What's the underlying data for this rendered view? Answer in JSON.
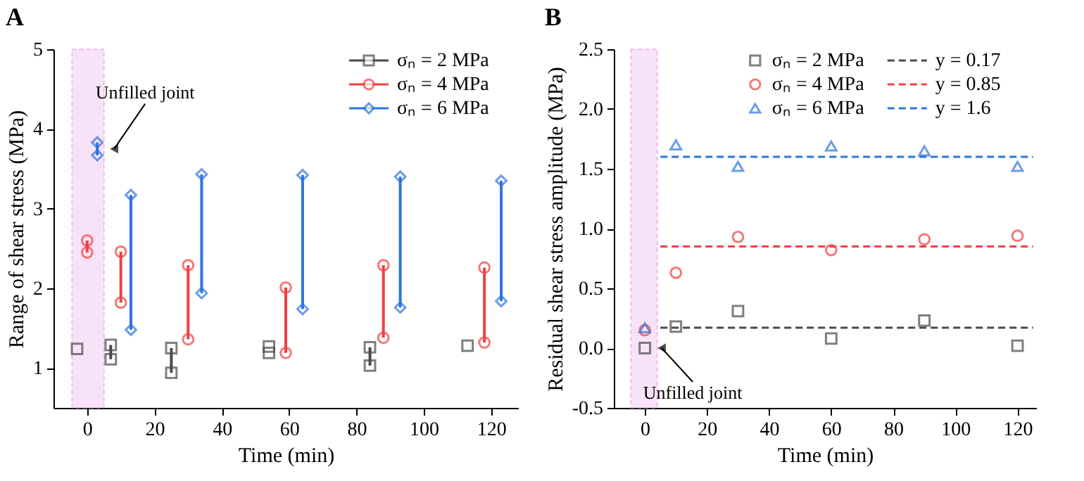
{
  "chart_data": [
    {
      "type": "bar",
      "title": "A",
      "xlabel": "Time (min)",
      "ylabel": "Range of shear stress (MPa)",
      "xlim": [
        -10,
        128
      ],
      "xticks": [
        0,
        20,
        40,
        60,
        80,
        100,
        120
      ],
      "ylim": [
        0.5,
        5
      ],
      "yticks": [
        1,
        2,
        3,
        4,
        5
      ],
      "grid": false,
      "legend": "top right",
      "series": [
        {
          "name": "σₙ = 2 MPa",
          "color": "#4a4a4a",
          "x": [
            null,
            7,
            25,
            null,
            84,
            null
          ],
          "base": [
            null,
            1.11,
            0.94,
            null,
            1.03,
            null
          ],
          "values": [
            null,
            0.18,
            0.31,
            null,
            0.23,
            null
          ]
        },
        {
          "name": "σₙ = 4 MPa",
          "color": "#f04040",
          "x": [
            0,
            10,
            30,
            59,
            88,
            118
          ],
          "base": [
            2.45,
            1.82,
            1.36,
            1.19,
            1.38,
            1.32
          ],
          "values": [
            0.15,
            0.64,
            0.93,
            0.82,
            0.91,
            0.94
          ]
        },
        {
          "name": "σₙ = 6 MPa",
          "color": "#2d74e0",
          "x": [
            3,
            13,
            34,
            64,
            93,
            123
          ],
          "base": [
            3.67,
            1.48,
            1.94,
            1.74,
            1.76,
            1.84
          ],
          "values": [
            0.16,
            1.69,
            1.49,
            1.68,
            1.64,
            1.51
          ]
        },
        {
          "type": "scatter",
          "color": "#4a4a4a",
          "marker": "square",
          "x": [
            -3,
            7,
            25,
            54,
            84,
            113,
            7,
            25,
            54,
            84
          ],
          "values": [
            1.24,
            1.11,
            0.94,
            1.19,
            1.03,
            1.28,
            1.29,
            1.25,
            1.27,
            1.26
          ]
        },
        {
          "type": "scatter",
          "color": "#f04040",
          "marker": "circle",
          "x": [
            0,
            10,
            30,
            59,
            88,
            118,
            0,
            10,
            30,
            59,
            88,
            118
          ],
          "values": [
            2.45,
            1.82,
            1.36,
            1.19,
            1.38,
            1.32,
            2.6,
            2.46,
            2.29,
            2.01,
            2.29,
            2.26
          ]
        },
        {
          "type": "scatter",
          "color": "#2d74e0",
          "marker": "diamond",
          "x": [
            3,
            13,
            34,
            64,
            93,
            123,
            3,
            13,
            34,
            64,
            93,
            123
          ],
          "values": [
            3.67,
            1.48,
            1.94,
            1.74,
            1.76,
            1.84,
            3.83,
            3.17,
            3.43,
            3.42,
            3.4,
            3.35
          ]
        }
      ],
      "bands": [
        {
          "axis": "x",
          "from": -4.5,
          "to": 5,
          "color": "#f7dcf7"
        }
      ],
      "annotations": [
        {
          "text": "Unfilled joint",
          "x": 3,
          "y": 3.75
        }
      ]
    },
    {
      "type": "scatter",
      "title": "B",
      "xlabel": "Time (min)",
      "ylabel": "Residual shear stress amplitude (MPa)",
      "xlim": [
        -10,
        126
      ],
      "xticks": [
        0,
        20,
        40,
        60,
        80,
        100,
        120
      ],
      "ylim": [
        -0.5,
        2.5
      ],
      "yticks": [
        -0.5,
        {
          "value": 0,
          "label": "0.0"
        },
        0.5,
        {
          "value": 1,
          "label": "1.0"
        },
        1.5,
        {
          "value": 2,
          "label": "2.0"
        },
        2.5
      ],
      "grid": false,
      "legend": "top right",
      "series": [
        {
          "name": "σₙ = 2 MPa",
          "color": "#4a4a4a",
          "marker": "square",
          "x": [
            0,
            10,
            30,
            60,
            90,
            120
          ],
          "values": [
            0,
            0.18,
            0.31,
            0.08,
            0.23,
            0.02
          ]
        },
        {
          "name": "σₙ = 4 MPa",
          "color": "#f04040",
          "marker": "circle",
          "x": [
            0,
            10,
            30,
            60,
            90,
            120
          ],
          "values": [
            0.15,
            0.63,
            0.93,
            0.82,
            0.91,
            0.94
          ]
        },
        {
          "name": "σₙ = 6 MPa",
          "color": "#2d74e0",
          "marker": "triangle",
          "x": [
            0,
            10,
            30,
            60,
            90,
            120
          ],
          "values": [
            0.17,
            1.7,
            1.52,
            1.69,
            1.65,
            1.52
          ]
        },
        {
          "name": "y = 0.17",
          "type": "line",
          "color": "#4a4a4a",
          "line_style": "dashed",
          "x": [
            5,
            125
          ],
          "values": [
            0.17,
            0.17
          ]
        },
        {
          "name": "y = 0.85",
          "type": "line",
          "color": "#f04040",
          "line_style": "dashed",
          "x": [
            5,
            125
          ],
          "values": [
            0.85,
            0.85
          ]
        },
        {
          "name": "y = 1.6",
          "type": "line",
          "color": "#2d74e0",
          "line_style": "dashed",
          "x": [
            5,
            125
          ],
          "values": [
            1.6,
            1.6
          ]
        }
      ],
      "bands": [
        {
          "axis": "x",
          "from": -4.5,
          "to": 4,
          "color": "#f7dcf7"
        }
      ],
      "annotations": [
        {
          "text": "Unfilled joint",
          "x": 0,
          "y": 0
        }
      ]
    }
  ]
}
